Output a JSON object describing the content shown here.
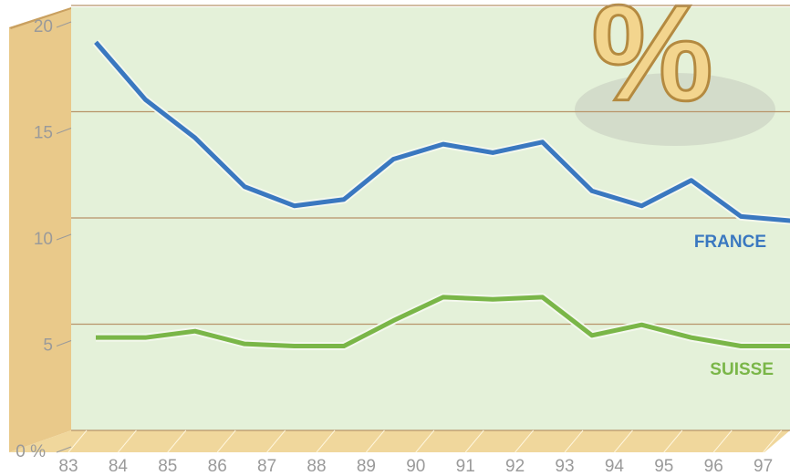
{
  "chart_data": {
    "type": "line",
    "categories": [
      "83",
      "84",
      "85",
      "86",
      "87",
      "88",
      "89",
      "90",
      "91",
      "92",
      "93",
      "94",
      "95",
      "96",
      "97"
    ],
    "series": [
      {
        "name": "FRANCE",
        "color": "#3a78c0",
        "values": [
          19.3,
          16.6,
          14.8,
          12.5,
          11.6,
          11.9,
          13.8,
          14.5,
          14.1,
          14.6,
          12.3,
          11.6,
          12.8,
          11.1,
          10.9
        ]
      },
      {
        "name": "SUISSE",
        "color": "#7ab648",
        "values": [
          5.4,
          5.4,
          5.7,
          5.1,
          5.0,
          5.0,
          6.2,
          7.3,
          7.2,
          7.3,
          5.5,
          6.0,
          5.4,
          5.0,
          5.0
        ]
      }
    ],
    "ylim": [
      0,
      20
    ],
    "yticks": [
      {
        "value": 0,
        "label": "0 %"
      },
      5,
      10,
      15,
      20
    ],
    "grid": true
  }
}
